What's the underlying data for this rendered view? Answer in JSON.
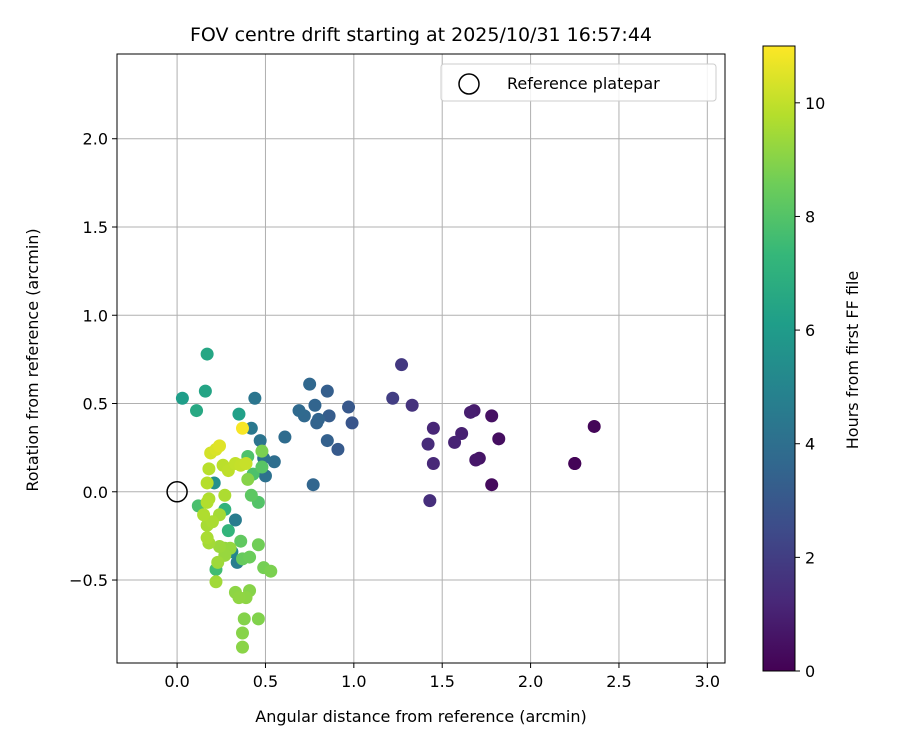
{
  "chart_data": {
    "type": "scatter",
    "title": "FOV centre drift starting at 2025/10/31 16:57:44",
    "xlabel": "Angular distance from reference (arcmin)",
    "ylabel": "Rotation from reference (arcmin)",
    "xlim": [
      -0.34,
      3.1
    ],
    "ylim": [
      -0.97,
      2.48
    ],
    "xticks": [
      0.0,
      0.5,
      1.0,
      1.5,
      2.0,
      2.5,
      3.0
    ],
    "xtick_labels": [
      "0.0",
      "0.5",
      "1.0",
      "1.5",
      "2.0",
      "2.5",
      "3.0"
    ],
    "yticks": [
      -0.5,
      0.0,
      0.5,
      1.0,
      1.5,
      2.0
    ],
    "ytick_labels": [
      "−0.5",
      "0.0",
      "0.5",
      "1.0",
      "1.5",
      "2.0"
    ],
    "grid": true,
    "legend": {
      "placement": "top-right",
      "entries": [
        {
          "label": "Reference platepar",
          "marker": "open-circle"
        }
      ]
    },
    "reference_point": {
      "x": 0.0,
      "y": 0.0
    },
    "colorbar": {
      "label": "Hours from first FF file",
      "range": [
        0,
        11.0
      ],
      "ticks": [
        0,
        2,
        4,
        6,
        8,
        10
      ],
      "tick_labels": [
        "0",
        "2",
        "4",
        "6",
        "8",
        "10"
      ],
      "colormap": "viridis"
    },
    "series": [
      {
        "name": "FOV centre drift",
        "points": [
          {
            "x": 2.25,
            "y": 0.16,
            "c": 0.05
          },
          {
            "x": 2.25,
            "y": 0.16,
            "c": 0.1
          },
          {
            "x": 2.36,
            "y": 0.37,
            "c": 0.15
          },
          {
            "x": 1.78,
            "y": 0.04,
            "c": 0.3
          },
          {
            "x": 1.82,
            "y": 0.3,
            "c": 0.4
          },
          {
            "x": 1.78,
            "y": 0.43,
            "c": 0.5
          },
          {
            "x": 1.71,
            "y": 0.19,
            "c": 0.6
          },
          {
            "x": 1.69,
            "y": 0.18,
            "c": 0.7
          },
          {
            "x": 1.68,
            "y": 0.46,
            "c": 0.8
          },
          {
            "x": 1.66,
            "y": 0.45,
            "c": 0.9
          },
          {
            "x": 1.61,
            "y": 0.33,
            "c": 1.0
          },
          {
            "x": 1.57,
            "y": 0.28,
            "c": 1.1
          },
          {
            "x": 1.45,
            "y": 0.36,
            "c": 1.2
          },
          {
            "x": 1.45,
            "y": 0.16,
            "c": 1.25
          },
          {
            "x": 1.42,
            "y": 0.27,
            "c": 1.35
          },
          {
            "x": 1.43,
            "y": -0.05,
            "c": 1.45
          },
          {
            "x": 1.33,
            "y": 0.49,
            "c": 1.6
          },
          {
            "x": 1.27,
            "y": 0.72,
            "c": 1.8
          },
          {
            "x": 1.22,
            "y": 0.53,
            "c": 2.0
          },
          {
            "x": 0.99,
            "y": 0.39,
            "c": 2.9
          },
          {
            "x": 0.97,
            "y": 0.48,
            "c": 3.0
          },
          {
            "x": 0.91,
            "y": 0.24,
            "c": 3.1
          },
          {
            "x": 0.86,
            "y": 0.43,
            "c": 3.2
          },
          {
            "x": 0.85,
            "y": 0.57,
            "c": 3.3
          },
          {
            "x": 0.85,
            "y": 0.29,
            "c": 3.4
          },
          {
            "x": 0.79,
            "y": 0.39,
            "c": 3.45
          },
          {
            "x": 0.8,
            "y": 0.41,
            "c": 3.5
          },
          {
            "x": 0.78,
            "y": 0.49,
            "c": 3.55
          },
          {
            "x": 0.77,
            "y": 0.04,
            "c": 3.6
          },
          {
            "x": 0.75,
            "y": 0.61,
            "c": 3.65
          },
          {
            "x": 0.72,
            "y": 0.43,
            "c": 3.7
          },
          {
            "x": 0.69,
            "y": 0.46,
            "c": 3.75
          },
          {
            "x": 0.61,
            "y": 0.31,
            "c": 3.85
          },
          {
            "x": 0.55,
            "y": 0.17,
            "c": 3.95
          },
          {
            "x": 0.5,
            "y": 0.09,
            "c": 4.1
          },
          {
            "x": 0.49,
            "y": 0.19,
            "c": 4.2
          },
          {
            "x": 0.47,
            "y": 0.29,
            "c": 4.25
          },
          {
            "x": 0.44,
            "y": 0.53,
            "c": 4.3
          },
          {
            "x": 0.42,
            "y": 0.36,
            "c": 4.4
          },
          {
            "x": 0.33,
            "y": -0.16,
            "c": 4.6
          },
          {
            "x": 0.34,
            "y": -0.4,
            "c": 4.7
          },
          {
            "x": 0.31,
            "y": -0.34,
            "c": 5.0
          },
          {
            "x": 0.21,
            "y": 0.05,
            "c": 5.5
          },
          {
            "x": 0.35,
            "y": 0.44,
            "c": 6.2
          },
          {
            "x": 0.17,
            "y": 0.78,
            "c": 6.5
          },
          {
            "x": 0.16,
            "y": 0.57,
            "c": 6.4
          },
          {
            "x": 0.03,
            "y": 0.53,
            "c": 6.1
          },
          {
            "x": 0.11,
            "y": 0.46,
            "c": 6.6
          },
          {
            "x": 0.29,
            "y": -0.22,
            "c": 7.2
          },
          {
            "x": 0.27,
            "y": -0.1,
            "c": 7.1
          },
          {
            "x": 0.22,
            "y": -0.44,
            "c": 7.6
          },
          {
            "x": 0.12,
            "y": -0.08,
            "c": 7.8
          },
          {
            "x": 0.4,
            "y": 0.2,
            "c": 7.9
          },
          {
            "x": 0.43,
            "y": 0.1,
            "c": 7.85
          },
          {
            "x": 0.46,
            "y": -0.06,
            "c": 8.0
          },
          {
            "x": 0.48,
            "y": 0.14,
            "c": 8.1
          },
          {
            "x": 0.42,
            "y": -0.02,
            "c": 8.2
          },
          {
            "x": 0.36,
            "y": -0.28,
            "c": 8.3
          },
          {
            "x": 0.37,
            "y": -0.38,
            "c": 8.4
          },
          {
            "x": 0.41,
            "y": -0.37,
            "c": 8.5
          },
          {
            "x": 0.46,
            "y": -0.3,
            "c": 8.6
          },
          {
            "x": 0.49,
            "y": -0.43,
            "c": 8.7
          },
          {
            "x": 0.53,
            "y": -0.45,
            "c": 8.8
          },
          {
            "x": 0.46,
            "y": -0.72,
            "c": 8.9
          },
          {
            "x": 0.41,
            "y": -0.56,
            "c": 9.0
          },
          {
            "x": 0.38,
            "y": -0.72,
            "c": 8.95
          },
          {
            "x": 0.37,
            "y": -0.8,
            "c": 9.0
          },
          {
            "x": 0.37,
            "y": -0.88,
            "c": 9.05
          },
          {
            "x": 0.33,
            "y": -0.57,
            "c": 9.1
          },
          {
            "x": 0.35,
            "y": -0.6,
            "c": 9.15
          },
          {
            "x": 0.39,
            "y": -0.6,
            "c": 9.1
          },
          {
            "x": 0.4,
            "y": 0.07,
            "c": 9.0
          },
          {
            "x": 0.48,
            "y": 0.23,
            "c": 8.8
          },
          {
            "x": 0.27,
            "y": -0.32,
            "c": 9.2
          },
          {
            "x": 0.3,
            "y": -0.32,
            "c": 9.25
          },
          {
            "x": 0.27,
            "y": -0.36,
            "c": 9.3
          },
          {
            "x": 0.24,
            "y": -0.31,
            "c": 9.35
          },
          {
            "x": 0.23,
            "y": -0.4,
            "c": 9.4
          },
          {
            "x": 0.22,
            "y": -0.51,
            "c": 9.45
          },
          {
            "x": 0.18,
            "y": -0.29,
            "c": 9.5
          },
          {
            "x": 0.17,
            "y": -0.19,
            "c": 9.55
          },
          {
            "x": 0.2,
            "y": -0.17,
            "c": 9.6
          },
          {
            "x": 0.24,
            "y": -0.13,
            "c": 9.5
          },
          {
            "x": 0.27,
            "y": -0.02,
            "c": 9.65
          },
          {
            "x": 0.18,
            "y": -0.04,
            "c": 9.7
          },
          {
            "x": 0.17,
            "y": -0.06,
            "c": 9.75
          },
          {
            "x": 0.17,
            "y": 0.05,
            "c": 9.8
          },
          {
            "x": 0.15,
            "y": -0.13,
            "c": 9.7
          },
          {
            "x": 0.17,
            "y": -0.26,
            "c": 9.6
          },
          {
            "x": 0.18,
            "y": 0.13,
            "c": 9.85
          },
          {
            "x": 0.26,
            "y": 0.15,
            "c": 9.9
          },
          {
            "x": 0.29,
            "y": 0.12,
            "c": 9.95
          },
          {
            "x": 0.33,
            "y": 0.16,
            "c": 10.0
          },
          {
            "x": 0.36,
            "y": 0.15,
            "c": 10.05
          },
          {
            "x": 0.39,
            "y": 0.16,
            "c": 10.1
          },
          {
            "x": 0.19,
            "y": 0.22,
            "c": 10.3
          },
          {
            "x": 0.22,
            "y": 0.24,
            "c": 10.4
          },
          {
            "x": 0.24,
            "y": 0.26,
            "c": 10.5
          },
          {
            "x": 0.37,
            "y": 0.36,
            "c": 10.9
          }
        ]
      }
    ]
  }
}
